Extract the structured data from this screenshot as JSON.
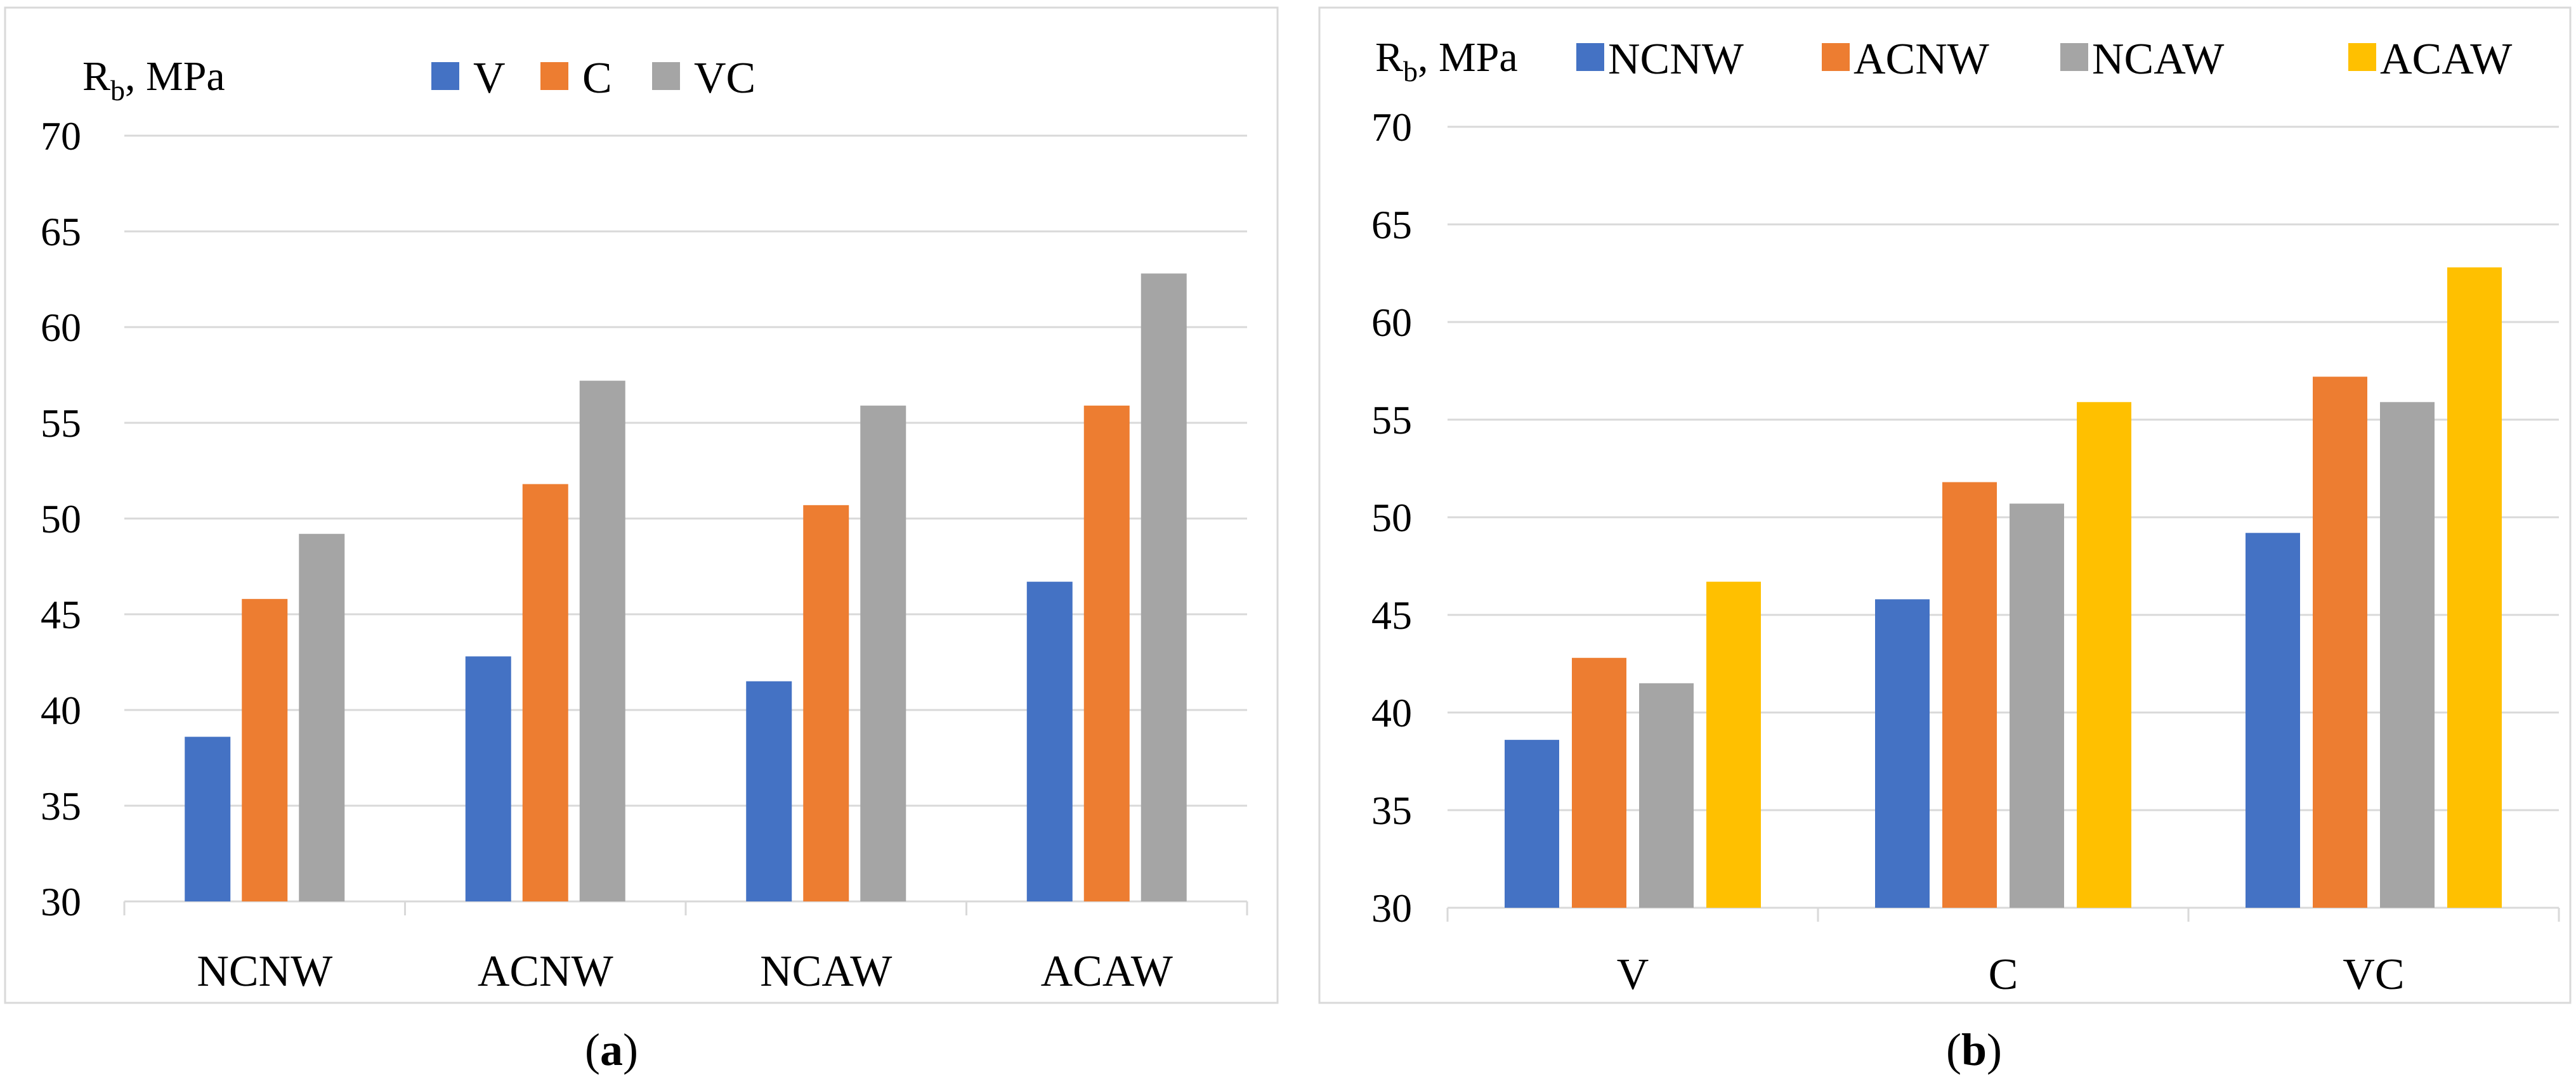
{
  "colors": {
    "V": "#4472c4",
    "C": "#ed7d31",
    "VC": "#a5a5a5",
    "NCNW": "#4472c4",
    "ACNW": "#ed7d31",
    "NCAW": "#a5a5a5",
    "ACAW": "#ffc000"
  },
  "chart_data": [
    {
      "type": "bar",
      "panel_label": "a",
      "ylabel_main": "R",
      "ylabel_sub": "b",
      "ylabel_rest": ", MPa",
      "categories": [
        "NCNW",
        "ACNW",
        "NCAW",
        "ACAW"
      ],
      "series": [
        {
          "name": "V",
          "values": [
            38.6,
            42.8,
            41.5,
            46.7
          ]
        },
        {
          "name": "C",
          "values": [
            45.8,
            51.8,
            50.7,
            55.9
          ]
        },
        {
          "name": "VC",
          "values": [
            49.2,
            57.2,
            55.9,
            62.8
          ]
        }
      ],
      "ylim": [
        30,
        70
      ],
      "yticks": [
        30,
        35,
        40,
        45,
        50,
        55,
        60,
        65,
        70
      ],
      "grid": true,
      "legend_position": "top"
    },
    {
      "type": "bar",
      "panel_label": "b",
      "ylabel_main": "R",
      "ylabel_sub": "b",
      "ylabel_rest": ", MPa",
      "categories": [
        "V",
        "C",
        "VC"
      ],
      "series": [
        {
          "name": "NCNW",
          "values": [
            38.6,
            45.8,
            49.2
          ]
        },
        {
          "name": "ACNW",
          "values": [
            42.8,
            51.8,
            57.2
          ]
        },
        {
          "name": "NCAW",
          "values": [
            41.5,
            50.7,
            55.9
          ]
        },
        {
          "name": "ACAW",
          "values": [
            46.7,
            55.9,
            62.8
          ]
        }
      ],
      "ylim": [
        30,
        70
      ],
      "yticks": [
        30,
        35,
        40,
        45,
        50,
        55,
        60,
        65,
        70
      ],
      "grid": true,
      "legend_position": "top"
    }
  ]
}
